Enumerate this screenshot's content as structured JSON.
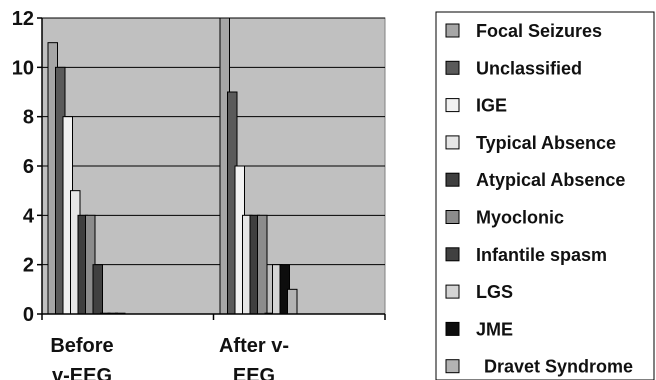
{
  "chart_data": {
    "type": "bar",
    "title": "",
    "xlabel": "",
    "ylabel": "",
    "ylim": [
      0,
      12
    ],
    "yticks": [
      0,
      2,
      4,
      6,
      8,
      10,
      12
    ],
    "grid": true,
    "legend_position": "right",
    "categories": [
      [
        "Before",
        "v-EEG"
      ],
      [
        "After v-",
        "EEG"
      ]
    ],
    "series": [
      {
        "name": "Focal Seizures",
        "color": "#a6a6a6",
        "values": [
          11,
          12
        ]
      },
      {
        "name": "Unclassified",
        "color": "#5a5a5a",
        "values": [
          10,
          9
        ]
      },
      {
        "name": "IGE",
        "color": "#f2f2f2",
        "values": [
          8,
          6
        ]
      },
      {
        "name": "Typical Absence",
        "color": "#e6e6e6",
        "values": [
          5,
          4
        ]
      },
      {
        "name": "Atypical Absence",
        "color": "#3f3f3f",
        "values": [
          4,
          4
        ]
      },
      {
        "name": "Myoclonic",
        "color": "#8c8c8c",
        "values": [
          4,
          4
        ]
      },
      {
        "name": "Infantile spasm",
        "color": "#404040",
        "values": [
          2,
          0
        ]
      },
      {
        "name": "LGS",
        "color": "#d4d4d4",
        "values": [
          0,
          2
        ]
      },
      {
        "name": "JME",
        "color": "#0d0d0d",
        "values": [
          0,
          2
        ]
      },
      {
        "name": "Dravet Syndrome",
        "color": "#b3b3b3",
        "values": [
          0,
          1
        ]
      }
    ]
  }
}
